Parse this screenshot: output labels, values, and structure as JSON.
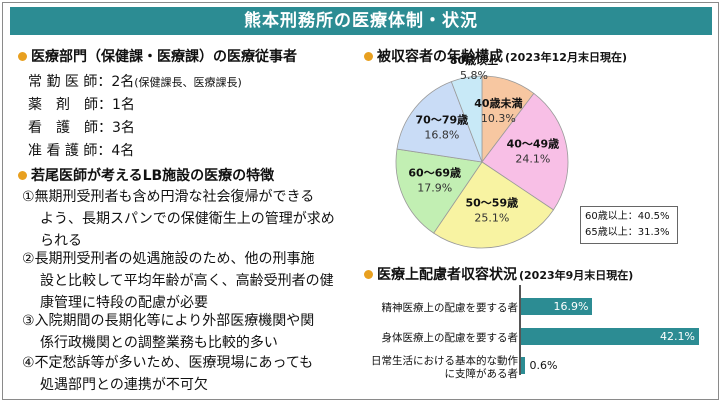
{
  "banner": {
    "title": "熊本刑務所の医療体制・状況"
  },
  "left": {
    "section1_title": "医療部門（保健課・医療課）の医療従事者",
    "staff": [
      {
        "label": "常 勤 医 師：2名",
        "note": "(保健課長、医療課長)"
      },
      {
        "label": "薬　剤　師：1名",
        "note": ""
      },
      {
        "label": "看　護　師：3名",
        "note": ""
      },
      {
        "label": "准 看 護 師：4名",
        "note": ""
      }
    ],
    "section2_title": "若尾医師が考えるLB施設の医療の特徴",
    "items": [
      {
        "first": "①無期刑受刑者も含め円滑な社会復帰ができる",
        "rest": "よう、長期スパンでの保健衛生上の管理が求められる"
      },
      {
        "first": "②長期刑受刑者の処遇施設のため、他の刑事施",
        "rest": "設と比較して平均年齢が高く、高齢受刑者の健康管理に特段の配慮が必要"
      },
      {
        "first": "③入院期間の長期化等により外部医療機関や関",
        "rest": "係行政機関との調整業務も比較的多い"
      },
      {
        "first": "④不定愁訴等が多いため、医療現場にあっても",
        "rest": "処遇部門との連携が不可欠"
      }
    ]
  },
  "right": {
    "pie_title": "被収容者の年齢構成",
    "pie_subtitle": "(2023年12月末日現在)",
    "stats": [
      "60歳以上：40.5%",
      "65歳以上：31.3%"
    ],
    "bar_title": "医療上配慮者収容状況",
    "bar_subtitle": "(2023年9月末日現在)"
  },
  "chart_data": [
    {
      "type": "pie",
      "title": "被収容者の年齢構成",
      "subtitle": "(2023年12月末日現在)",
      "categories": [
        "40歳未満",
        "40～49歳",
        "50～59歳",
        "60～69歳",
        "70～79歳",
        "80歳以上"
      ],
      "values": [
        10.3,
        24.1,
        25.1,
        17.9,
        16.8,
        5.8
      ],
      "value_labels": [
        "10.3%",
        "24.1%",
        "25.1%",
        "17.9%",
        "16.8%",
        "5.8%"
      ],
      "colors": [
        "#f7c7a1",
        "#f8bfe6",
        "#f8f3a2",
        "#c2efb3",
        "#c9dcf6",
        "#c8e9f7"
      ]
    },
    {
      "type": "bar",
      "orientation": "horizontal",
      "title": "医療上配慮者収容状況",
      "subtitle": "(2023年9月末日現在)",
      "categories": [
        "精神医療上の配慮を要する者",
        "身体医療上の配慮を要する者",
        "日常生活における基本的な動作に支障がある者"
      ],
      "values": [
        16.9,
        42.1,
        0.6
      ],
      "value_labels": [
        "16.9%",
        "42.1%",
        "0.6%"
      ],
      "bar_color": "#2c8c93"
    }
  ]
}
